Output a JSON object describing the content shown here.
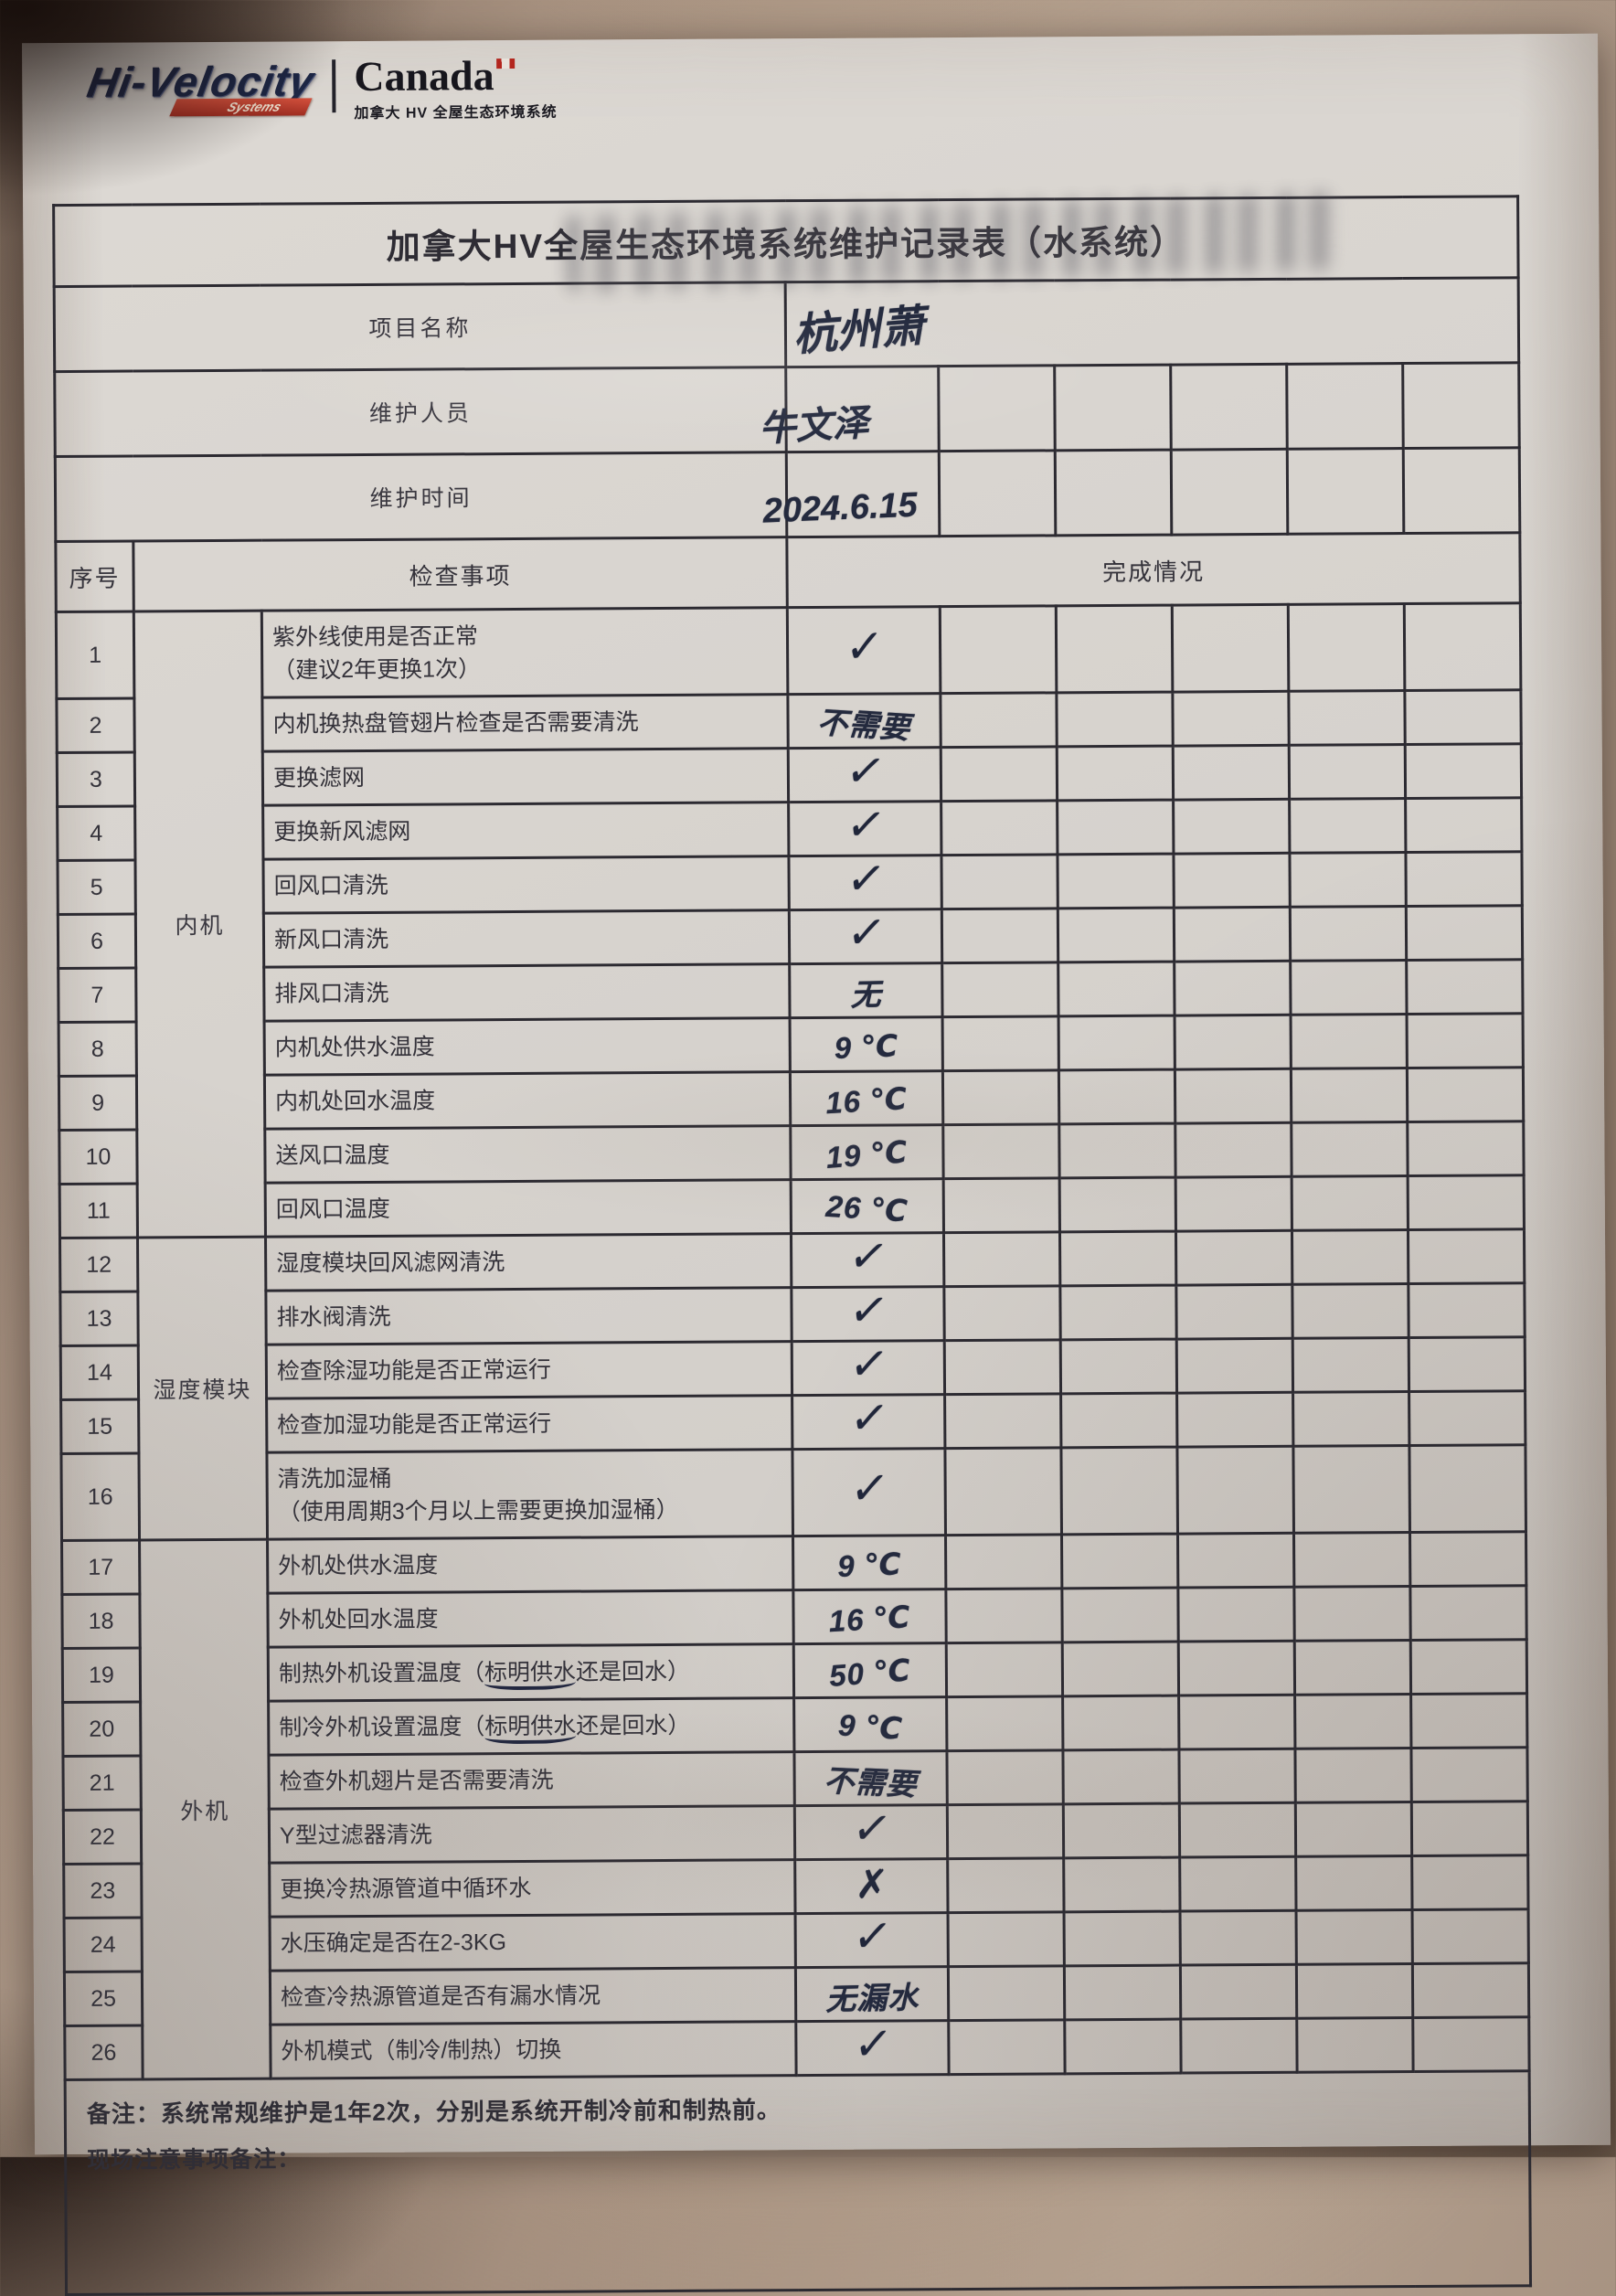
{
  "logo": {
    "brand": "Hi-Velocity",
    "brand_sub": "Systems",
    "region": "Canada",
    "region_tagline": "加拿大 HV 全屋生态环境系统"
  },
  "form": {
    "title": "加拿大HV全屋生态环境系统维护记录表（水系统）",
    "fields": [
      {
        "label": "项目名称",
        "value": "杭州萧"
      },
      {
        "label": "维护人员",
        "value": "牛文泽"
      },
      {
        "label": "维护时间",
        "value": "2024.6.15"
      }
    ],
    "header": {
      "index": "序号",
      "item": "检查事项",
      "status": "完成情况"
    },
    "marks": {
      "check": "✓",
      "cross": "✗"
    },
    "groups": [
      {
        "label": "内机",
        "start": 1,
        "span": 11
      },
      {
        "label": "湿度模块",
        "start": 12,
        "span": 5
      },
      {
        "label": "外机",
        "start": 17,
        "span": 10
      }
    ],
    "rows": [
      {
        "no": "1",
        "item": [
          [
            "紫外线使用是否正常"
          ],
          [
            "（建议2年更换1次）"
          ]
        ],
        "mark": {
          "type": "check"
        }
      },
      {
        "no": "2",
        "item": [
          [
            "内机换热盘管翅片检查是否需要清洗"
          ]
        ],
        "mark": {
          "type": "text",
          "value": "不需要"
        }
      },
      {
        "no": "3",
        "item": [
          [
            "更换滤网"
          ]
        ],
        "mark": {
          "type": "check"
        }
      },
      {
        "no": "4",
        "item": [
          [
            "更换新风滤网"
          ]
        ],
        "mark": {
          "type": "check"
        }
      },
      {
        "no": "5",
        "item": [
          [
            "回风口清洗"
          ]
        ],
        "mark": {
          "type": "check"
        }
      },
      {
        "no": "6",
        "item": [
          [
            "新风口清洗"
          ]
        ],
        "mark": {
          "type": "check"
        }
      },
      {
        "no": "7",
        "item": [
          [
            "排风口清洗"
          ]
        ],
        "mark": {
          "type": "text",
          "value": "无"
        }
      },
      {
        "no": "8",
        "item": [
          [
            "内机处供水温度"
          ]
        ],
        "mark": {
          "type": "text",
          "value": "9 ℃"
        }
      },
      {
        "no": "9",
        "item": [
          [
            "内机处回水温度"
          ]
        ],
        "mark": {
          "type": "text",
          "value": "16 ℃"
        }
      },
      {
        "no": "10",
        "item": [
          [
            "送风口温度"
          ]
        ],
        "mark": {
          "type": "text",
          "value": "19 ℃"
        }
      },
      {
        "no": "11",
        "item": [
          [
            "回风口温度"
          ]
        ],
        "mark": {
          "type": "text",
          "value": "26 ℃"
        }
      },
      {
        "no": "12",
        "item": [
          [
            "湿度模块回风滤网清洗"
          ]
        ],
        "mark": {
          "type": "check"
        }
      },
      {
        "no": "13",
        "item": [
          [
            "排水阀清洗"
          ]
        ],
        "mark": {
          "type": "check"
        }
      },
      {
        "no": "14",
        "item": [
          [
            "检查除湿功能是否正常运行"
          ]
        ],
        "mark": {
          "type": "check"
        }
      },
      {
        "no": "15",
        "item": [
          [
            "检查加湿功能是否正常运行"
          ]
        ],
        "mark": {
          "type": "check"
        }
      },
      {
        "no": "16",
        "item": [
          [
            "清洗加湿桶"
          ],
          [
            "（使用周期3个月以上需要更换加湿桶）"
          ]
        ],
        "mark": {
          "type": "check"
        }
      },
      {
        "no": "17",
        "item": [
          [
            "外机处供水温度"
          ]
        ],
        "mark": {
          "type": "text",
          "value": "9 ℃"
        }
      },
      {
        "no": "18",
        "item": [
          [
            "外机处回水温度"
          ]
        ],
        "mark": {
          "type": "text",
          "value": "16 ℃"
        }
      },
      {
        "no": "19",
        "item": [
          [
            "制热外机设置温度（",
            {
              "u": "标明供水"
            },
            "还是回水）"
          ]
        ],
        "mark": {
          "type": "text",
          "value": "50 ℃"
        }
      },
      {
        "no": "20",
        "item": [
          [
            "制冷外机设置温度（",
            {
              "u": "标明供水"
            },
            "还是回水）"
          ]
        ],
        "mark": {
          "type": "text",
          "value": "9 ℃"
        }
      },
      {
        "no": "21",
        "item": [
          [
            "检查外机翅片是否需要清洗"
          ]
        ],
        "mark": {
          "type": "text",
          "value": "不需要"
        }
      },
      {
        "no": "22",
        "item": [
          [
            "Y型过滤器清洗"
          ]
        ],
        "mark": {
          "type": "check"
        }
      },
      {
        "no": "23",
        "item": [
          [
            "更换冷热源管道中循环水"
          ]
        ],
        "mark": {
          "type": "cross"
        }
      },
      {
        "no": "24",
        "item": [
          [
            "水压确定是否在2-3KG"
          ]
        ],
        "mark": {
          "type": "check"
        }
      },
      {
        "no": "25",
        "item": [
          [
            "检查冷热源管道是否有漏水情况"
          ]
        ],
        "mark": {
          "type": "text",
          "value": "无漏水"
        }
      },
      {
        "no": "26",
        "item": [
          [
            "外机模式（制冷/制热）切换"
          ]
        ],
        "mark": {
          "type": "check"
        }
      }
    ],
    "notes": [
      "备注：系统常规维护是1年2次，分别是系统开制冷前和制热前。",
      "现场注意事项备注："
    ]
  }
}
